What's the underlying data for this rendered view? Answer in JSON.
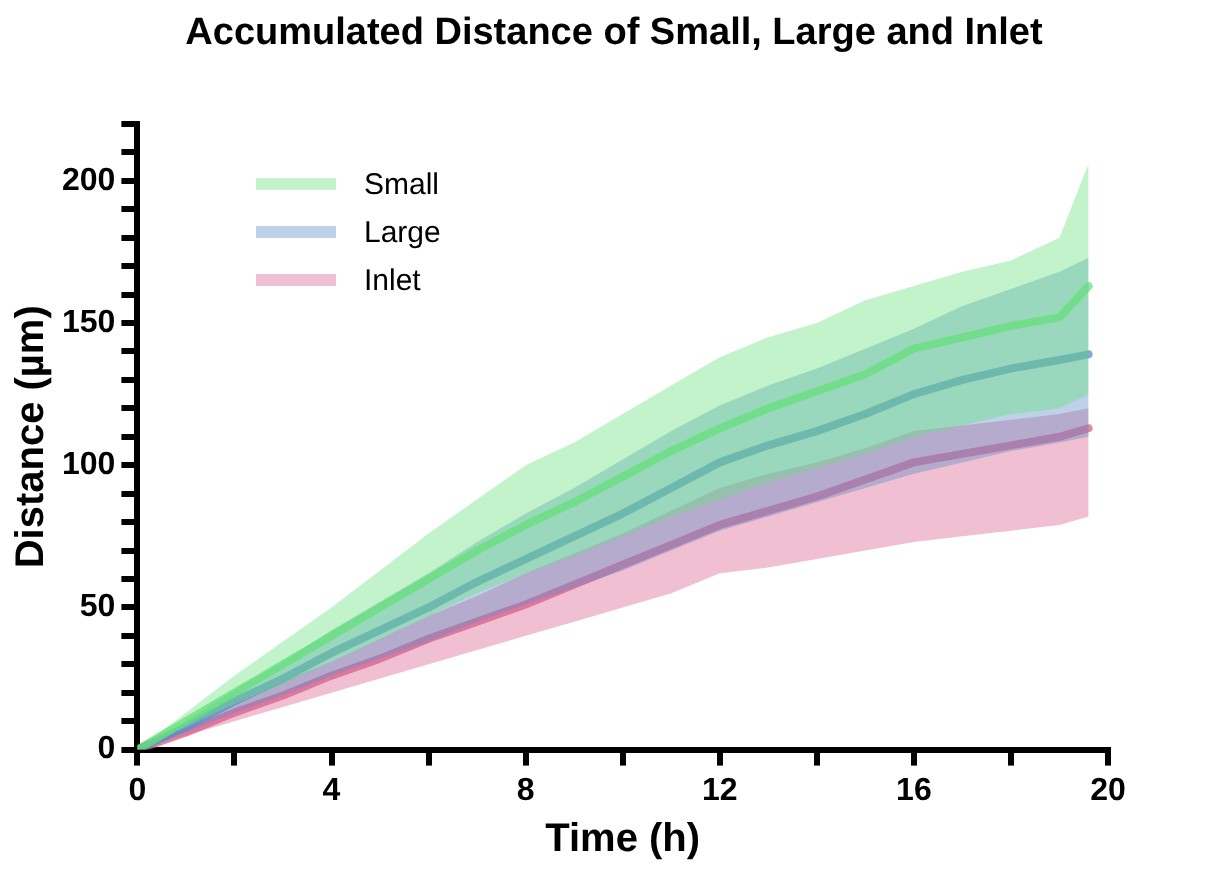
{
  "chart_data": {
    "type": "line",
    "title": "Accumulated Distance of  Small, Large and Inlet",
    "xlabel": "Time (h)",
    "ylabel": "Distance (µm)",
    "x": [
      0,
      1,
      2,
      3,
      4,
      5,
      6,
      7,
      8,
      9,
      10,
      11,
      12,
      13,
      14,
      15,
      16,
      17,
      18,
      19,
      19.6
    ],
    "series": [
      {
        "name": "Small",
        "color": "#66e07a",
        "values": [
          0,
          10,
          20,
          30,
          40,
          50,
          60,
          70,
          79,
          87,
          96,
          105,
          113,
          120,
          126,
          132,
          141,
          145,
          149,
          152,
          163
        ],
        "upper": [
          0,
          13,
          26,
          38,
          50,
          63,
          76,
          88,
          100,
          108,
          118,
          128,
          138,
          145,
          150,
          158,
          163,
          168,
          172,
          180,
          206
        ],
        "lower": [
          0,
          8,
          16,
          23,
          31,
          39,
          47,
          55,
          62,
          68,
          75,
          82,
          88,
          94,
          99,
          104,
          110,
          114,
          118,
          120,
          125
        ]
      },
      {
        "name": "Large",
        "color": "#5a8fc8",
        "values": [
          0,
          8,
          17,
          25,
          34,
          42,
          50,
          59,
          67,
          75,
          83,
          92,
          101,
          107,
          112,
          118,
          125,
          130,
          134,
          137,
          139
        ],
        "upper": [
          0,
          10,
          21,
          31,
          42,
          52,
          62,
          73,
          83,
          92,
          102,
          112,
          121,
          128,
          134,
          141,
          148,
          156,
          162,
          168,
          173
        ],
        "lower": [
          0,
          6,
          13,
          19,
          26,
          32,
          38,
          45,
          51,
          57,
          63,
          70,
          77,
          82,
          87,
          92,
          97,
          101,
          105,
          108,
          110
        ]
      },
      {
        "name": "Inlet",
        "color": "#d9608c",
        "values": [
          0,
          6,
          13,
          19,
          26,
          32,
          39,
          45,
          51,
          58,
          65,
          72,
          79,
          84,
          89,
          95,
          101,
          104,
          107,
          110,
          113
        ],
        "upper": [
          0,
          8,
          16,
          24,
          31,
          39,
          47,
          54,
          62,
          69,
          76,
          84,
          92,
          97,
          101,
          106,
          112,
          114,
          116,
          118,
          120
        ],
        "lower": [
          0,
          5,
          10,
          15,
          20,
          25,
          30,
          35,
          40,
          45,
          50,
          55,
          62,
          64,
          67,
          70,
          73,
          75,
          77,
          79,
          82
        ]
      }
    ],
    "xlim": [
      0,
      20
    ],
    "xticks": [
      0,
      {
        "value": 2,
        "label": null
      },
      4,
      {
        "value": 6,
        "label": null
      },
      8,
      {
        "value": 10,
        "label": null
      },
      12,
      {
        "value": 14,
        "label": null
      },
      16,
      {
        "value": 18,
        "label": null
      },
      20
    ],
    "ylim": [
      0,
      220
    ],
    "yticks": [
      0,
      {
        "value": 10,
        "label": null
      },
      {
        "value": 20,
        "label": null
      },
      {
        "value": 30,
        "label": null
      },
      {
        "value": 40,
        "label": null
      },
      50,
      {
        "value": 60,
        "label": null
      },
      {
        "value": 70,
        "label": null
      },
      {
        "value": 80,
        "label": null
      },
      {
        "value": 90,
        "label": null
      },
      100,
      {
        "value": 110,
        "label": null
      },
      {
        "value": 120,
        "label": null
      },
      {
        "value": 130,
        "label": null
      },
      {
        "value": 140,
        "label": null
      },
      150,
      {
        "value": 160,
        "label": null
      },
      {
        "value": 170,
        "label": null
      },
      {
        "value": 180,
        "label": null
      },
      {
        "value": 190,
        "label": null
      },
      200,
      {
        "value": 210,
        "label": null
      },
      {
        "value": 220,
        "label": null
      }
    ],
    "grid": false,
    "legend": "top left",
    "marker": "none",
    "line_style": "solid"
  }
}
